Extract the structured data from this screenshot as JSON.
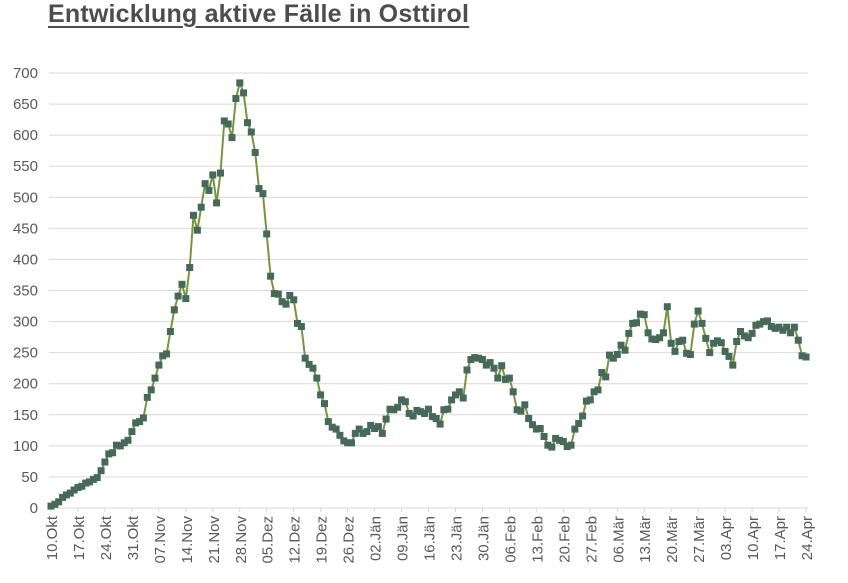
{
  "chart_data": {
    "type": "line",
    "title": "Entwicklung aktive Fälle in Osttirol",
    "xlabel": "",
    "ylabel": "",
    "ylim": [
      0,
      700
    ],
    "y_ticks": [
      0,
      50,
      100,
      150,
      200,
      250,
      300,
      350,
      400,
      450,
      500,
      550,
      600,
      650,
      700
    ],
    "grid": true,
    "legend": "none",
    "x_unit": "day",
    "points_per_tick": 7,
    "x_tick_labels": [
      "10.Okt",
      "17.Okt",
      "24.Okt",
      "31.Okt",
      "07.Nov",
      "14.Nov",
      "21.Nov",
      "28.Nov",
      "05.Dez",
      "12.Dez",
      "19.Dez",
      "26.Dez",
      "02.Jän",
      "09.Jän",
      "16.Jän",
      "23.Jän",
      "30.Jän",
      "06.Feb",
      "13.Feb",
      "20.Feb",
      "27.Feb",
      "06.Mär",
      "13.Mär",
      "20.Mär",
      "27.Mär",
      "03.Apr",
      "10.Apr",
      "17.Apr",
      "24.Apr"
    ],
    "series_name": "aktive Fälle",
    "values": [
      3,
      6,
      10,
      17,
      21,
      24,
      29,
      33,
      35,
      40,
      42,
      46,
      49,
      60,
      74,
      87,
      89,
      101,
      100,
      105,
      109,
      123,
      137,
      139,
      145,
      178,
      190,
      209,
      230,
      245,
      248,
      284,
      319,
      341,
      360,
      337,
      387,
      471,
      447,
      484,
      522,
      511,
      536,
      491,
      539,
      623,
      618,
      596,
      659,
      684,
      668,
      620,
      605,
      572,
      514,
      506,
      441,
      373,
      345,
      344,
      332,
      328,
      342,
      335,
      297,
      292,
      241,
      231,
      225,
      209,
      182,
      168,
      139,
      130,
      127,
      117,
      108,
      105,
      105,
      120,
      127,
      120,
      123,
      133,
      128,
      131,
      120,
      143,
      159,
      158,
      162,
      174,
      171,
      152,
      148,
      157,
      155,
      152,
      159,
      147,
      144,
      135,
      158,
      159,
      174,
      182,
      187,
      177,
      222,
      239,
      242,
      241,
      239,
      230,
      234,
      225,
      209,
      229,
      207,
      209,
      187,
      158,
      156,
      166,
      144,
      134,
      127,
      128,
      115,
      101,
      98,
      112,
      109,
      107,
      99,
      101,
      127,
      136,
      148,
      172,
      174,
      187,
      190,
      218,
      211,
      246,
      241,
      247,
      262,
      254,
      281,
      297,
      298,
      312,
      311,
      282,
      272,
      271,
      274,
      282,
      324,
      265,
      252,
      268,
      270,
      249,
      247,
      296,
      317,
      297,
      273,
      250,
      265,
      269,
      266,
      252,
      244,
      230,
      268,
      284,
      277,
      274,
      281,
      294,
      296,
      300,
      301,
      292,
      289,
      291,
      286,
      291,
      282,
      291,
      270,
      245,
      243
    ],
    "colors": {
      "line": "#76963e",
      "marker": "#46695a",
      "gridline": "#d9d9d9",
      "axis": "#d9d9d9",
      "tick_label": "#595959",
      "title": "#4d4d4d"
    },
    "marker_shape": "square"
  }
}
